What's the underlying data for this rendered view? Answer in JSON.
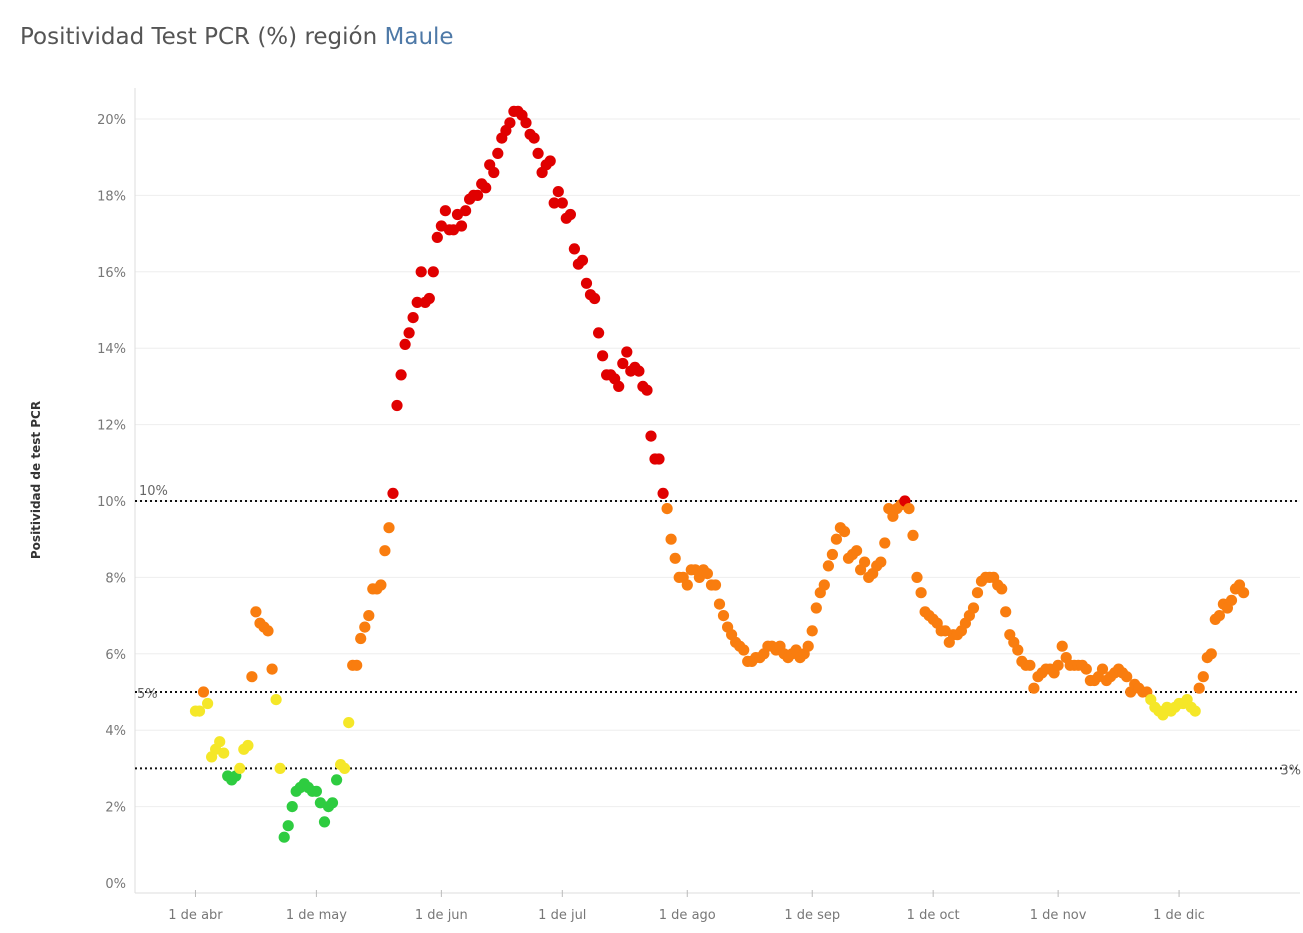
{
  "title": {
    "main": "Positividad Test PCR (%) región",
    "region": "Maule"
  },
  "colors": {
    "green": "#2ecc40",
    "yellow": "#f5e728",
    "orange": "#f97d0f",
    "red": "#e00000",
    "grid": "#eeeeee",
    "ref_line": "#111111"
  },
  "chart_data": {
    "type": "scatter",
    "title": "Positividad Test PCR (%) región Maule",
    "xlabel": "",
    "ylabel": "Positividad de test PCR",
    "ylim": [
      0,
      21
    ],
    "xlim": [
      "2020-03-17",
      "2020-12-31"
    ],
    "y_ticks": [
      "0%",
      "2%",
      "4%",
      "6%",
      "8%",
      "10%",
      "12%",
      "14%",
      "16%",
      "18%",
      "20%"
    ],
    "x_ticks": [
      {
        "date": "2020-04-01",
        "label": "1 de abr"
      },
      {
        "date": "2020-05-01",
        "label": "1 de may"
      },
      {
        "date": "2020-06-01",
        "label": "1 de jun"
      },
      {
        "date": "2020-07-01",
        "label": "1 de jul"
      },
      {
        "date": "2020-08-01",
        "label": "1 de ago"
      },
      {
        "date": "2020-09-01",
        "label": "1 de sep"
      },
      {
        "date": "2020-10-01",
        "label": "1 de oct"
      },
      {
        "date": "2020-11-01",
        "label": "1 de nov"
      },
      {
        "date": "2020-12-01",
        "label": "1 de dic"
      }
    ],
    "reference_lines": [
      {
        "value": 10,
        "label": "10%"
      },
      {
        "value": 5,
        "label": "5%"
      },
      {
        "value": 3,
        "label": "3%"
      }
    ],
    "color_scale": "green < 3% ≤ yellow < 5% ≤ orange < 10% ≤ red",
    "grid": true,
    "legend": "none",
    "series": [
      {
        "start_date": "2020-04-01",
        "values": [
          4.5,
          4.5,
          5.0,
          4.7,
          3.3,
          3.5,
          3.7,
          3.4,
          2.8,
          2.7,
          2.8,
          3.0,
          3.5,
          3.6,
          5.4,
          7.1,
          6.8,
          6.7,
          6.6,
          5.6,
          4.8,
          3.0,
          1.2,
          1.5,
          2.0,
          2.4,
          2.5,
          2.6,
          2.5,
          2.4,
          2.4,
          2.1,
          1.6,
          2.0,
          2.1,
          2.7,
          3.1,
          3.0,
          4.2,
          5.7,
          5.7,
          6.4,
          6.7,
          7.0,
          7.7,
          7.7,
          7.8,
          8.7,
          9.3,
          10.2,
          12.5,
          13.3,
          14.1,
          14.4,
          14.8,
          15.2,
          16.0,
          15.2,
          15.3,
          16.0,
          16.9,
          17.2,
          17.6,
          17.1,
          17.1,
          17.5,
          17.2,
          17.6,
          17.9,
          18.0,
          18.0,
          18.3,
          18.2,
          18.8,
          18.6,
          19.1,
          19.5,
          19.7,
          19.9,
          20.2,
          20.2,
          20.1,
          19.9,
          19.6,
          19.5,
          19.1,
          18.6,
          18.8,
          18.9,
          17.8,
          18.1,
          17.8,
          17.4,
          17.5,
          16.6,
          16.2,
          16.3,
          15.7,
          15.4,
          15.3,
          14.4,
          13.8,
          13.3,
          13.3,
          13.2,
          13.0,
          13.6,
          13.9,
          13.4,
          13.5,
          13.4,
          13.0,
          12.9,
          11.7,
          11.1,
          11.1,
          10.2,
          9.8,
          9.0,
          8.5,
          8.0,
          8.0,
          7.8,
          8.2,
          8.2,
          8.0,
          8.2,
          8.1,
          7.8,
          7.8,
          7.3,
          7.0,
          6.7,
          6.5,
          6.3,
          6.2,
          6.1,
          5.8,
          5.8,
          5.9,
          5.9,
          6.0,
          6.2,
          6.2,
          6.1,
          6.2,
          6.0,
          5.9,
          6.0,
          6.1,
          5.9,
          6.0,
          6.2,
          6.6,
          7.2,
          7.6,
          7.8,
          8.3,
          8.6,
          9.0,
          9.3,
          9.2,
          8.5,
          8.6,
          8.7,
          8.2,
          8.4,
          8.0,
          8.1,
          8.3,
          8.4,
          8.9,
          9.8,
          9.6,
          9.8,
          9.9,
          10.0,
          9.8,
          9.1,
          8.0,
          7.6,
          7.1,
          7.0,
          6.9,
          6.8,
          6.6,
          6.6,
          6.3,
          6.5,
          6.5,
          6.6,
          6.8,
          7.0,
          7.2,
          7.6,
          7.9,
          8.0,
          8.0,
          8.0,
          7.8,
          7.7,
          7.1,
          6.5,
          6.3,
          6.1,
          5.8,
          5.7,
          5.7,
          5.1,
          5.4,
          5.5,
          5.6,
          5.6,
          5.5,
          5.7,
          6.2,
          5.9,
          5.7,
          5.7,
          5.7,
          5.7,
          5.6,
          5.3,
          5.3,
          5.4,
          5.6,
          5.3,
          5.4,
          5.5,
          5.6,
          5.5,
          5.4,
          5.0,
          5.2,
          5.1,
          5.0,
          5.0,
          4.8,
          4.6,
          4.5,
          4.4,
          4.6,
          4.5,
          4.6,
          4.7,
          4.7,
          4.8,
          4.6,
          4.5,
          5.1,
          5.4,
          5.9,
          6.0,
          6.9,
          7.0,
          7.3,
          7.2,
          7.4,
          7.7,
          7.8,
          7.6
        ]
      }
    ]
  }
}
